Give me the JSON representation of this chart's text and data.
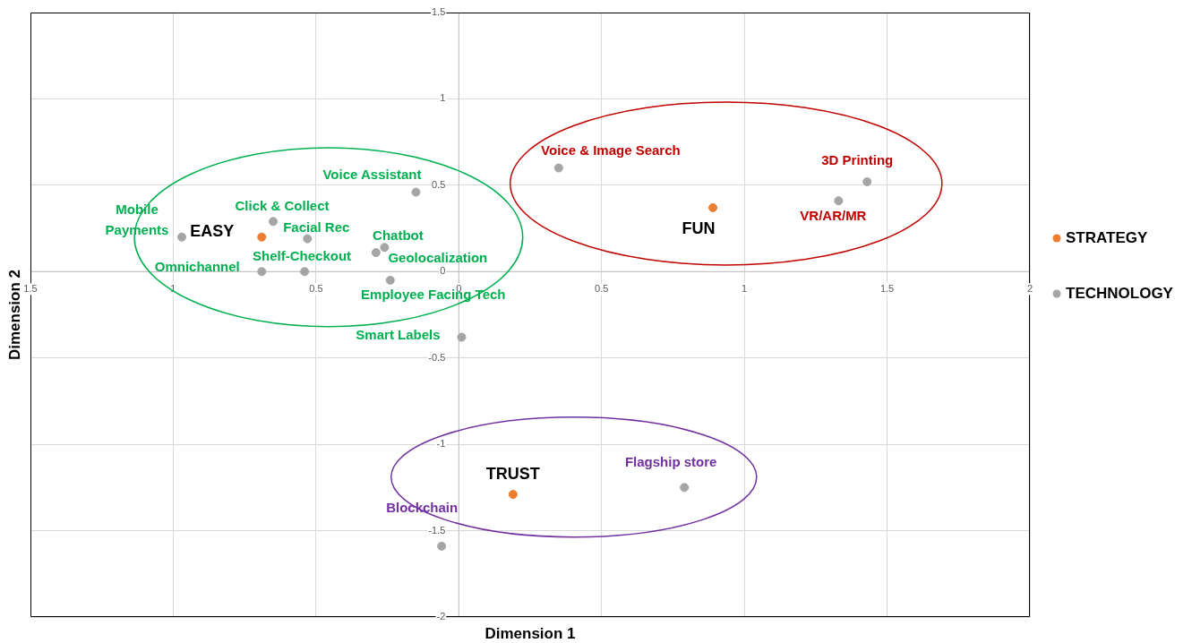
{
  "chart_data": {
    "type": "scatter",
    "xlabel": "Dimension 1",
    "ylabel": "Dimension 2",
    "xlim": [
      -1.5,
      2
    ],
    "xticks": [
      {
        "value": -1.5,
        "label": "1.5"
      },
      {
        "value": -1,
        "label": "1"
      },
      {
        "value": -0.5,
        "label": "0.5"
      },
      0,
      0.5,
      1,
      1.5,
      2
    ],
    "ylim": [
      -2,
      1.5
    ],
    "yticks": [
      -2,
      -1.5,
      -1,
      -0.5,
      0,
      0.5,
      1,
      1.5
    ],
    "grid": true,
    "legend": "right",
    "marker": "circle",
    "series": [
      {
        "name": "STRATEGY",
        "color": "#ed7d31",
        "x": [
          -0.69,
          0.89,
          0.19
        ],
        "values": [
          0.2,
          0.37,
          -1.29
        ]
      },
      {
        "name": "TECHNOLOGY",
        "color": "#a5a5a5",
        "x": [
          -0.97,
          -0.65,
          -0.53,
          -0.15,
          -0.26,
          -0.29,
          -0.69,
          -0.54,
          -0.24,
          0.01,
          0.35,
          1.43,
          1.33,
          0.79,
          -0.06
        ],
        "values": [
          0.2,
          0.29,
          0.19,
          0.46,
          0.14,
          0.11,
          0,
          0,
          -0.05,
          -0.38,
          0.6,
          0.52,
          0.41,
          -1.25,
          -1.59
        ]
      }
    ],
    "annotations": [
      {
        "text": "EASY",
        "x": -0.69,
        "y": 0.2
      },
      {
        "text": "FUN",
        "x": 0.89,
        "y": 0.37
      },
      {
        "text": "TRUST",
        "x": 0.19,
        "y": -1.29
      },
      {
        "text": "Mobile Payments",
        "x": -0.97,
        "y": 0.2
      },
      {
        "text": "Click & Collect",
        "x": -0.65,
        "y": 0.29
      },
      {
        "text": "Facial Rec",
        "x": -0.53,
        "y": 0.19
      },
      {
        "text": "Voice Assistant",
        "x": -0.15,
        "y": 0.46
      },
      {
        "text": "Chatbot",
        "x": -0.26,
        "y": 0.14
      },
      {
        "text": "Geolocalization",
        "x": -0.29,
        "y": 0.11
      },
      {
        "text": "Omnichannel",
        "x": -0.69,
        "y": 0
      },
      {
        "text": "Shelf-Checkout",
        "x": -0.54,
        "y": 0
      },
      {
        "text": "Employee Facing Tech",
        "x": -0.24,
        "y": -0.05
      },
      {
        "text": "Smart Labels",
        "x": 0.01,
        "y": -0.38
      },
      {
        "text": "Voice & Image Search",
        "x": 0.35,
        "y": 0.6
      },
      {
        "text": "3D Printing",
        "x": 1.43,
        "y": 0.52
      },
      {
        "text": "VR/AR/MR",
        "x": 1.33,
        "y": 0.41
      },
      {
        "text": "Flagship store",
        "x": 0.79,
        "y": -1.25
      },
      {
        "text": "Blockchain",
        "x": -0.06,
        "y": -1.59
      }
    ]
  }
}
